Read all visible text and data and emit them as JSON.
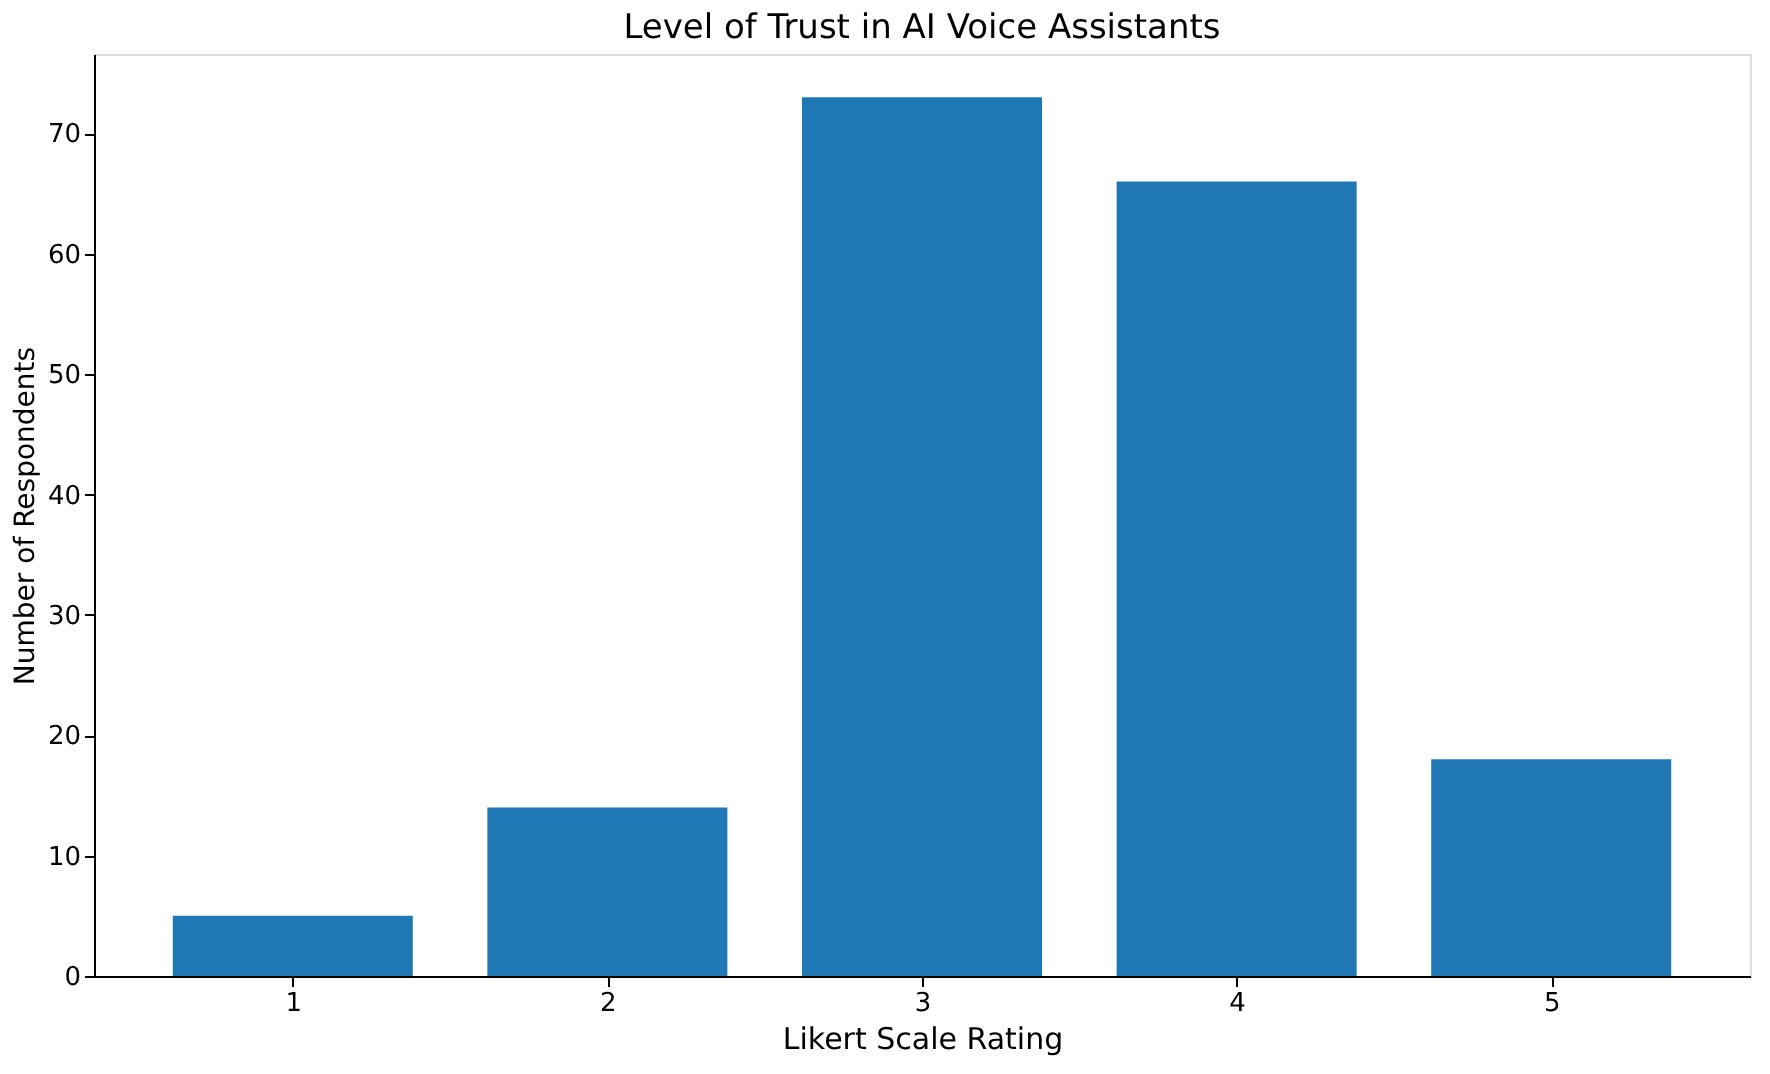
{
  "chart_data": {
    "type": "bar",
    "title": "Level of Trust in AI Voice Assistants",
    "xlabel": "Likert Scale Rating",
    "ylabel": "Number of Respondents",
    "categories": [
      "1",
      "2",
      "3",
      "4",
      "5"
    ],
    "values": [
      5,
      14,
      73,
      66,
      18
    ],
    "color": "#1f77b4",
    "ylim": [
      0,
      76.6
    ],
    "yticks": [
      0,
      10,
      20,
      30,
      40,
      50,
      60,
      70
    ],
    "grid": false
  }
}
